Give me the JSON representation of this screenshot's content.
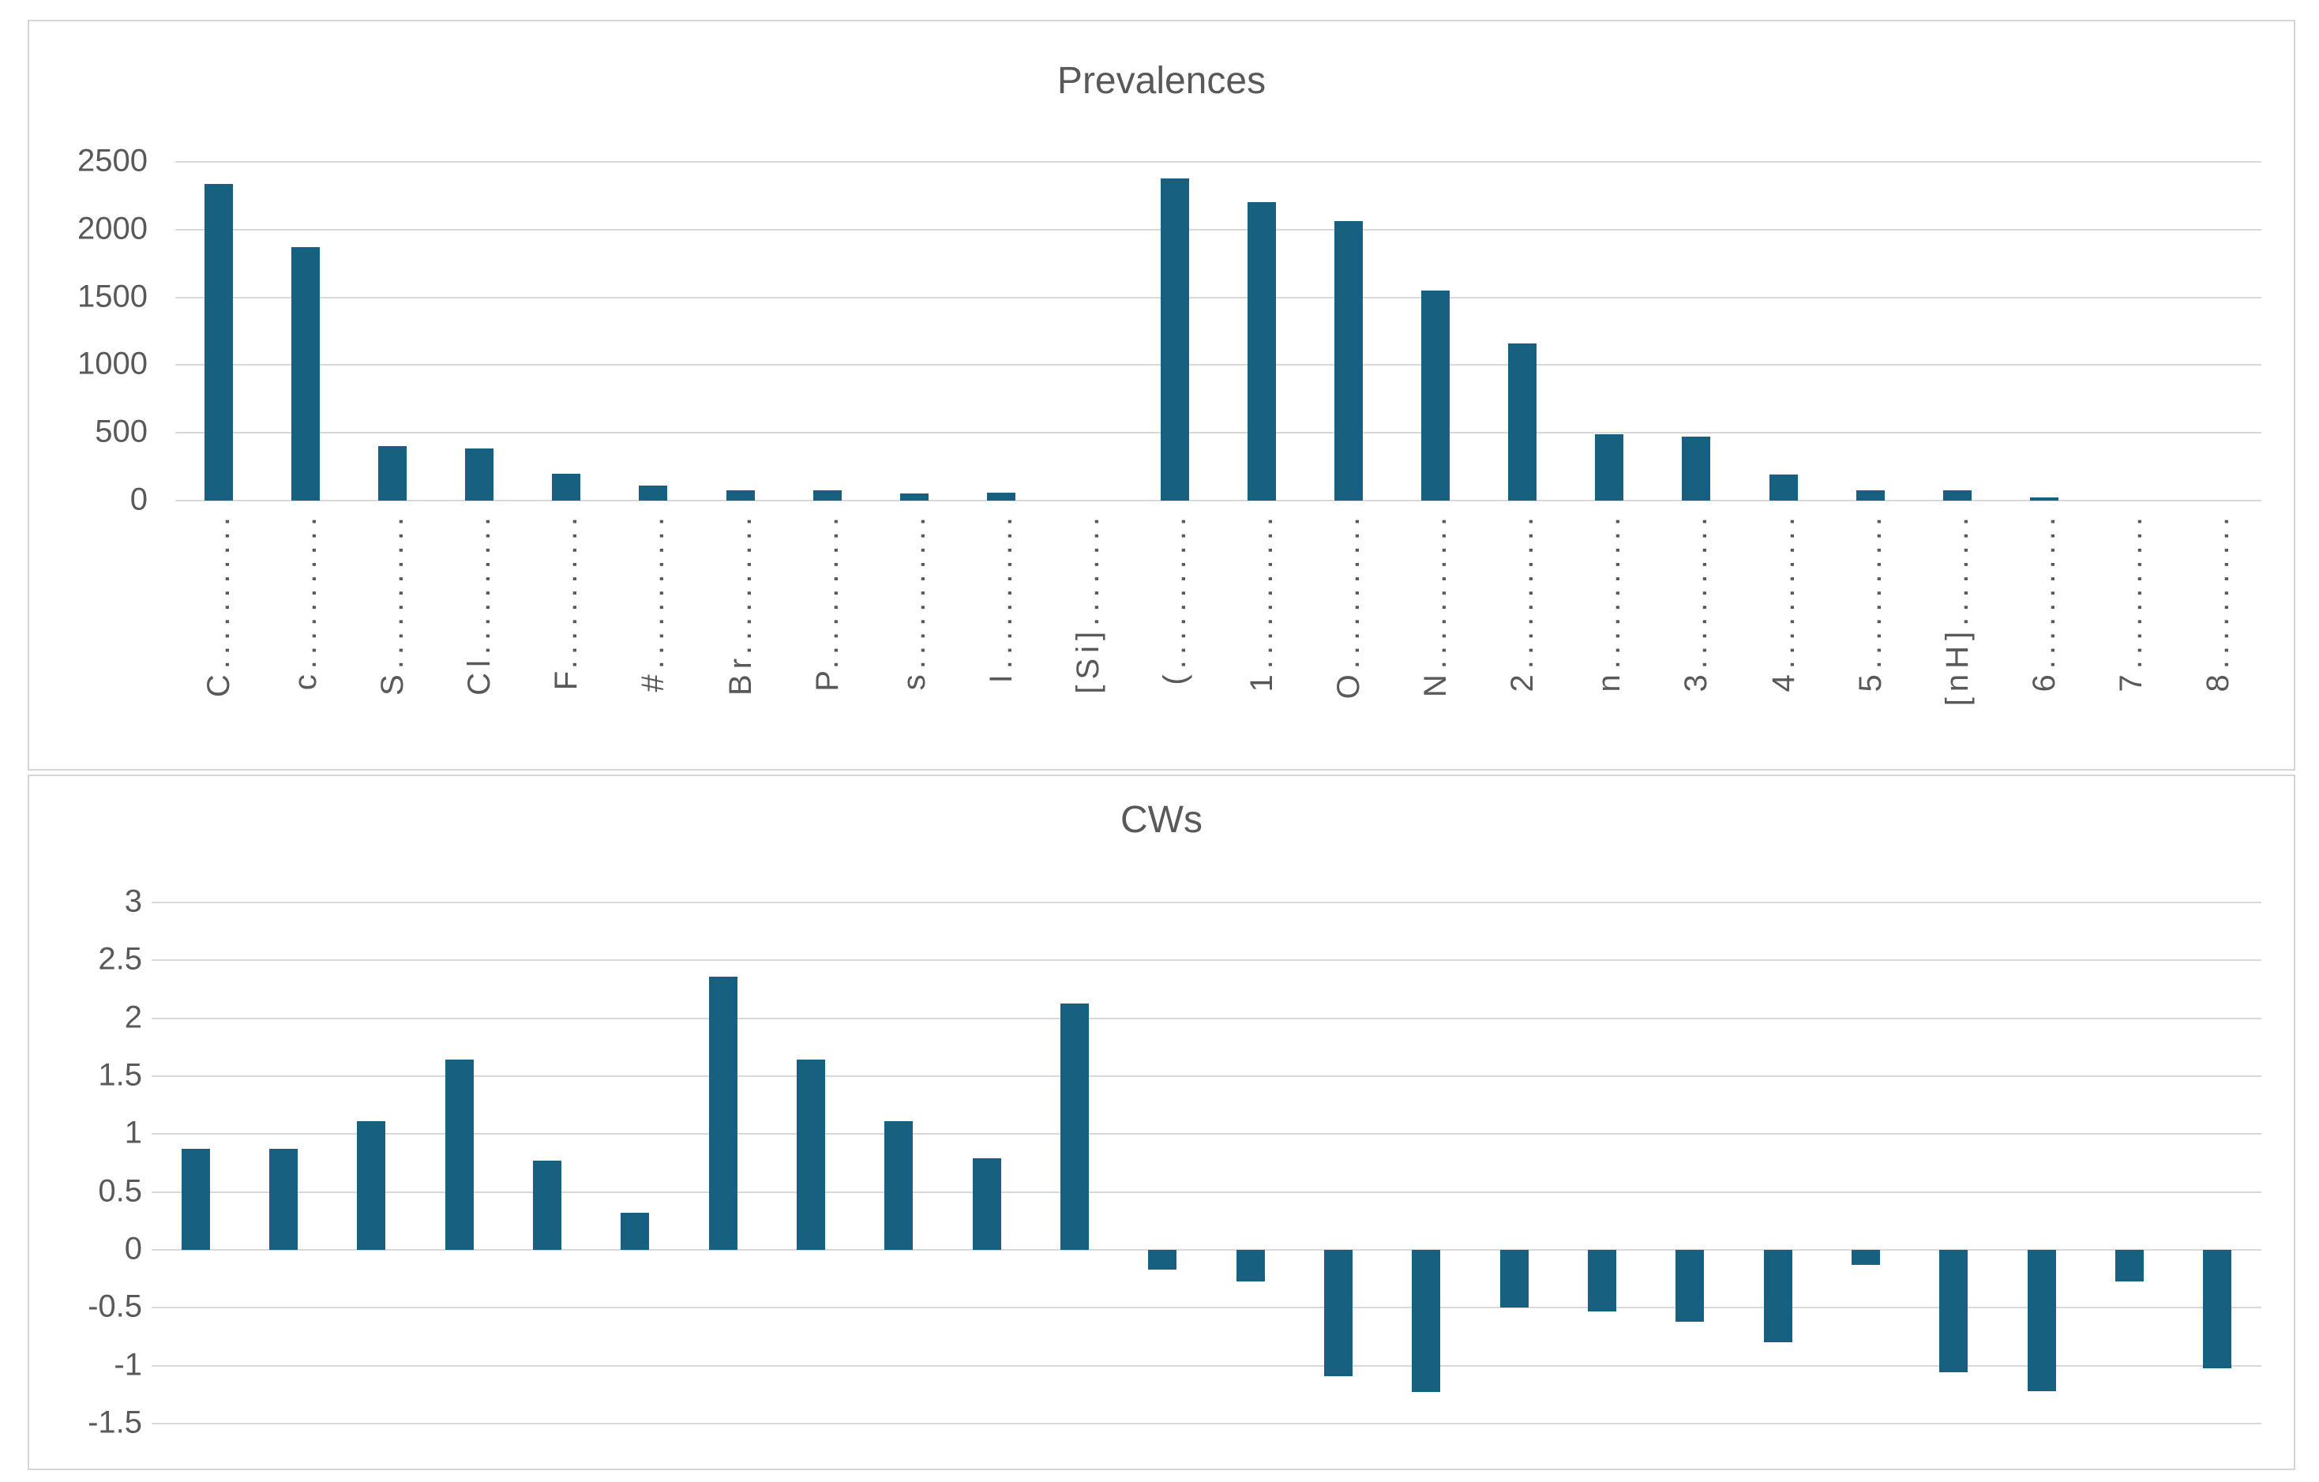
{
  "window": {
    "background": "#ffffff"
  },
  "style": {
    "bar_color": "#17607f",
    "grid_color": "#d9d9d9",
    "text_color": "#595959",
    "panel_border_color": "#d6d6d6"
  },
  "chart_data": [
    {
      "type": "bar",
      "title": "Prevalences",
      "categories": [
        "C",
        "c",
        "S",
        "Cl",
        "F",
        "#",
        "Br",
        "P",
        "s",
        "I",
        "[Si]",
        "(",
        "1",
        "O",
        "N",
        "2",
        "n",
        "3",
        "4",
        "5",
        "[nH]",
        "6",
        "7",
        "8"
      ],
      "x_tick_labels_display": [
        "C...........",
        "c...........",
        "S...........",
        "Cl..........",
        "F...........",
        "#...........",
        "Br..........",
        "P...........",
        "s...........",
        "I...........",
        "[Si]........",
        "(...........",
        "1...........",
        "O...........",
        "N...........",
        "2...........",
        "n...........",
        "3...........",
        "4...........",
        "5...........",
        "[nH]........",
        "6...........",
        "7...........",
        "8..........."
      ],
      "values": [
        2335,
        1870,
        400,
        385,
        200,
        110,
        75,
        75,
        55,
        60,
        0,
        2375,
        2200,
        2065,
        1550,
        1160,
        490,
        470,
        195,
        75,
        75,
        25,
        0,
        0
      ],
      "ylim": [
        0,
        2500
      ],
      "ytick_step": 500,
      "y_tick_labels": [
        "2500",
        "2000",
        "1500",
        "1000",
        "500",
        "0"
      ],
      "grid": true,
      "legend": "none",
      "bar_color": "#17607f"
    },
    {
      "type": "bar",
      "title": "CWs",
      "categories": [
        "C",
        "c",
        "S",
        "Cl",
        "F",
        "#",
        "Br",
        "P",
        "s",
        "I",
        "[Si]",
        "(",
        "1",
        "O",
        "N",
        "2",
        "n",
        "3",
        "4",
        "5",
        "[nH]",
        "6",
        "7",
        "8"
      ],
      "x_tick_labels_display": [],
      "values": [
        0.87,
        0.87,
        1.11,
        1.64,
        0.77,
        0.32,
        2.36,
        1.64,
        1.11,
        0.79,
        2.13,
        -0.17,
        -0.27,
        -1.09,
        -1.23,
        -0.5,
        -0.53,
        -0.62,
        -0.8,
        -0.13,
        -1.06,
        -1.22,
        -0.27,
        -1.02
      ],
      "ylim": [
        -1.5,
        3
      ],
      "ytick_step": 0.5,
      "y_tick_labels": [
        "3",
        "2.5",
        "2",
        "1.5",
        "1",
        "0.5",
        "0",
        "-0.5",
        "-1",
        "-1.5"
      ],
      "grid": true,
      "legend": "none",
      "bar_color": "#17607f"
    }
  ]
}
